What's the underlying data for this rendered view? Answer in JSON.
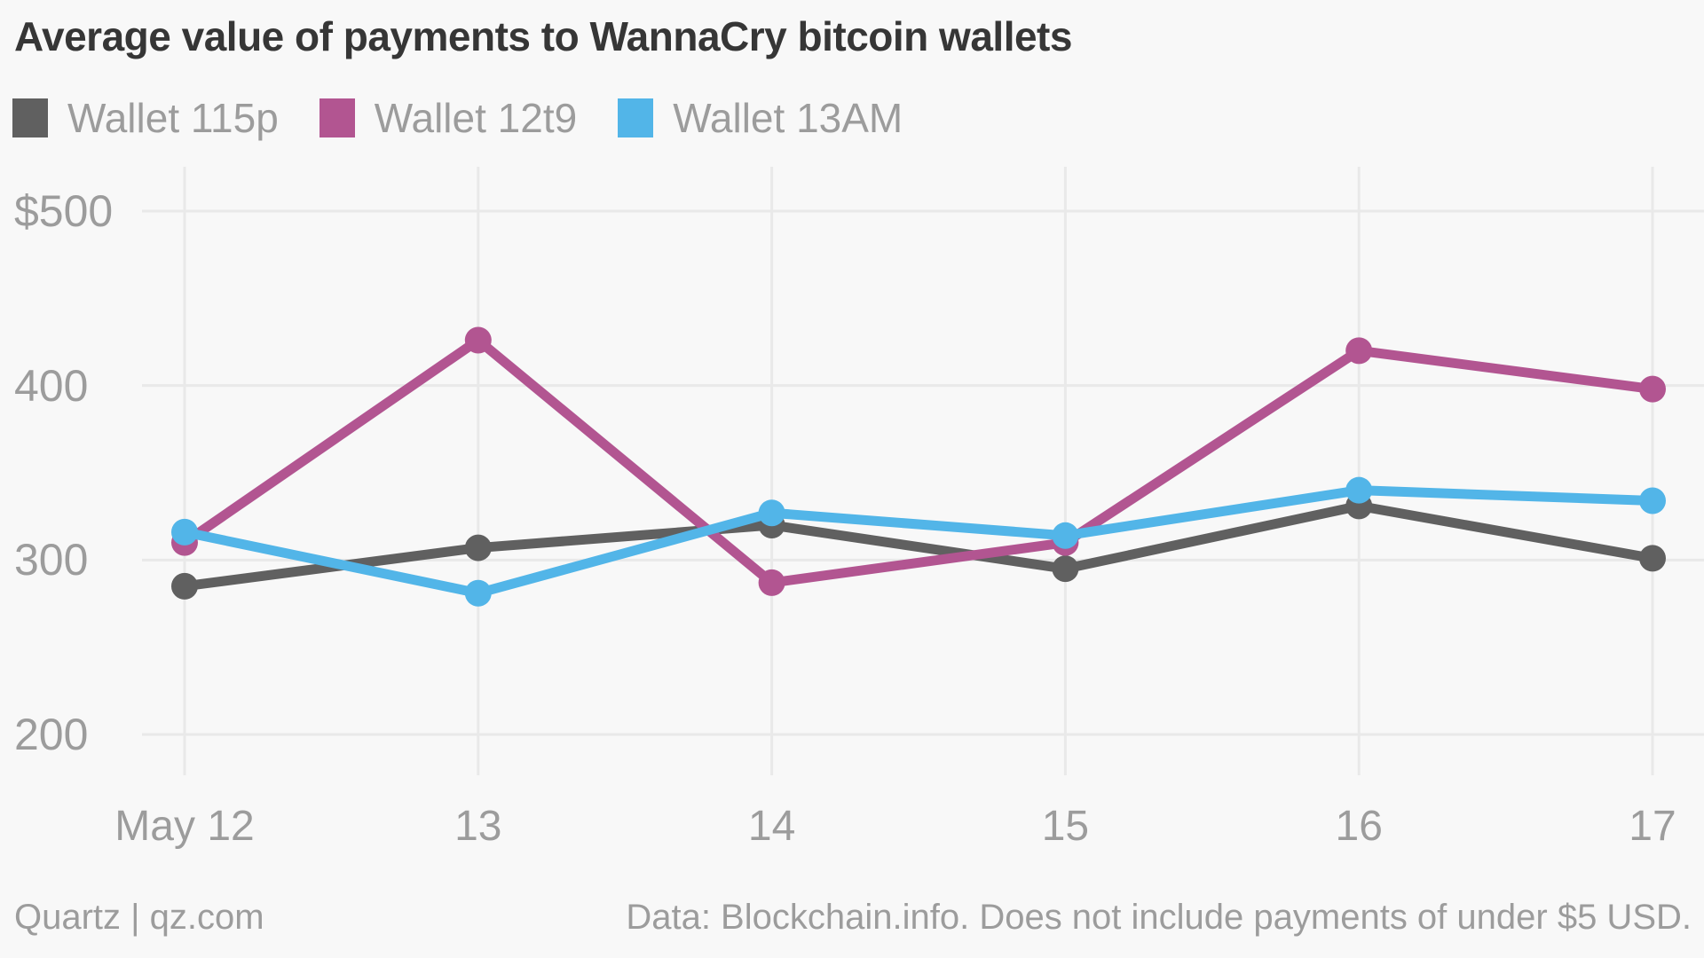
{
  "title": "Average value of payments to WannaCry bitcoin wallets",
  "footer": {
    "attribution": "Quartz | qz.com",
    "source_note": "Data: Blockchain.info. Does not include payments of under $5 USD."
  },
  "colors": {
    "background": "#f8f8f8",
    "gridline": "#e9e9e9",
    "title_text": "#363636",
    "axis_text": "#9c9c9c"
  },
  "chart_data": {
    "type": "line",
    "title": "Average value of payments to WannaCry bitcoin wallets",
    "categories": [
      "May 12",
      "13",
      "14",
      "15",
      "16",
      "17"
    ],
    "series": [
      {
        "name": "Wallet 115p",
        "color": "#606060",
        "values": [
          285,
          307,
          320,
          295,
          331,
          301
        ]
      },
      {
        "name": "Wallet 12t9",
        "color": "#b25591",
        "values": [
          310,
          426,
          287,
          310,
          420,
          398
        ]
      },
      {
        "name": "Wallet 13AM",
        "color": "#52b5e8",
        "values": [
          316,
          281,
          327,
          314,
          340,
          334
        ]
      }
    ],
    "y_axis": {
      "tick_labels": [
        "$500",
        "400",
        "300",
        "200"
      ],
      "tick_values": [
        500,
        400,
        300,
        200
      ],
      "range": [
        150,
        540
      ],
      "unit": "USD"
    },
    "x_axis": {
      "label": ""
    },
    "grid": true,
    "legend_position": "top",
    "markers": true
  }
}
